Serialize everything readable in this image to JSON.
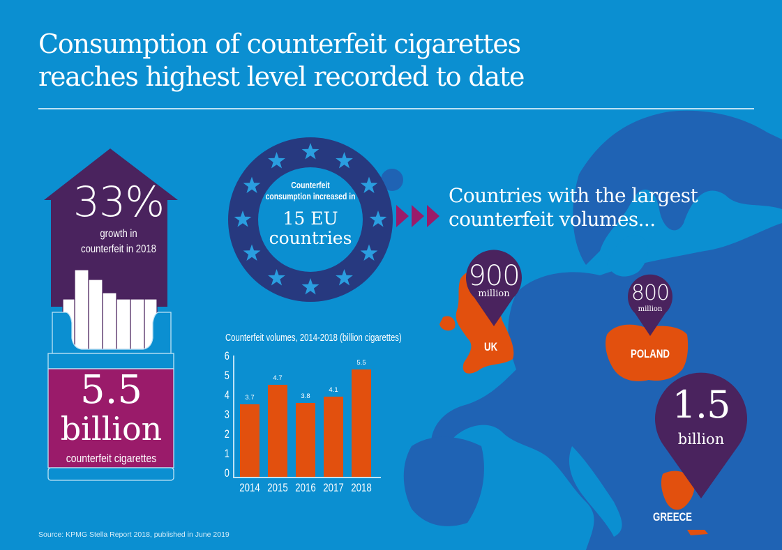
{
  "title": {
    "line1": "Consumption of counterfeit cigarettes",
    "line2": "reaches highest level recorded to date"
  },
  "growth": {
    "value": "33%",
    "label_line1": "growth in",
    "label_line2": "counterfeit in 2018"
  },
  "total": {
    "value": "5.5",
    "unit": "billion",
    "label": "counterfeit cigarettes"
  },
  "eu_badge": {
    "small_line1": "Counterfeit",
    "small_line2": "consumption increased in",
    "big_line1": "15 EU",
    "big_line2": "countries"
  },
  "countries_heading": {
    "line1": "Countries with the largest",
    "line2": "counterfeit volumes..."
  },
  "pins": [
    {
      "country": "UK",
      "value": "900",
      "unit": "million"
    },
    {
      "country": "POLAND",
      "value": "800",
      "unit": "million"
    },
    {
      "country": "GREECE",
      "value": "1.5",
      "unit": "billion"
    }
  ],
  "source": "Source: KPMG Stella Report 2018, published in June 2019",
  "colors": {
    "background": "#0b8fd1",
    "map_land": "#1f63b4",
    "purple": "#4a235e",
    "magenta": "#9a1b6a",
    "orange": "#e2500e",
    "eu_ring": "#27397f"
  },
  "chart_data": {
    "type": "bar",
    "title": "Counterfeit volumes, 2014-2018 (billion cigarettes)",
    "categories": [
      "2014",
      "2015",
      "2016",
      "2017",
      "2018"
    ],
    "values": [
      3.7,
      4.7,
      3.8,
      4.1,
      5.5
    ],
    "value_labels": [
      "3.7",
      "4.7",
      "3.8",
      "4.1",
      "5.5"
    ],
    "yticks": [
      "0",
      "1",
      "2",
      "3",
      "4",
      "5",
      "6"
    ],
    "xlabel": "",
    "ylabel": "",
    "ylim": [
      0,
      6
    ],
    "grid": false,
    "bar_color": "#e2500e"
  }
}
